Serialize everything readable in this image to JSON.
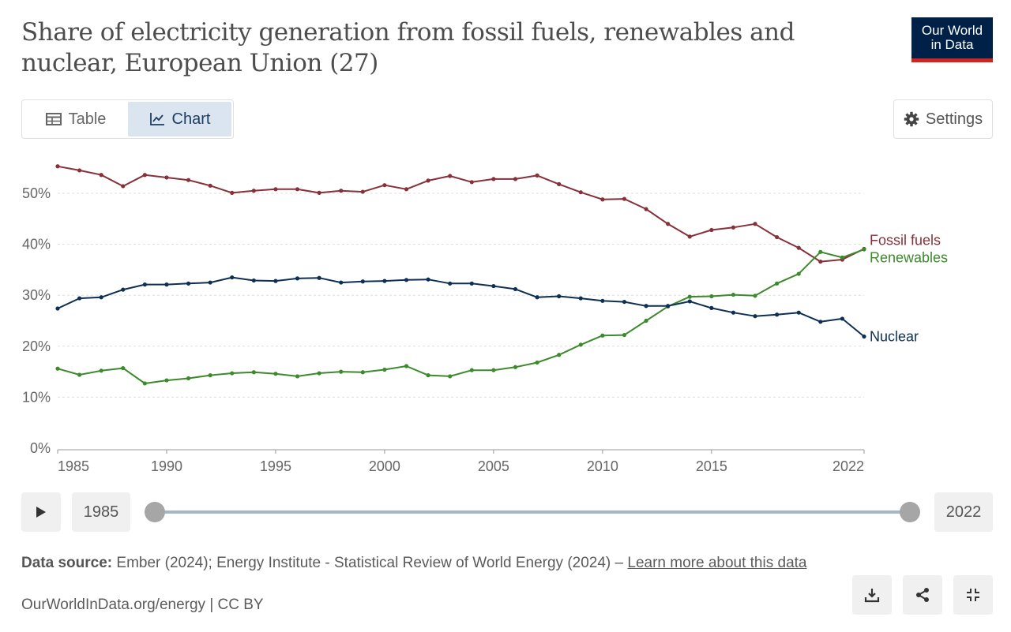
{
  "header": {
    "title": "Share of electricity generation from fossil fuels, renewables and nuclear, European Union (27)",
    "logo_line1": "Our World",
    "logo_line2": "in Data"
  },
  "tabs": [
    {
      "label": "Table",
      "icon": "table-icon",
      "active": false
    },
    {
      "label": "Chart",
      "icon": "line-chart-icon",
      "active": true
    }
  ],
  "settings_label": "Settings",
  "timeline": {
    "start_label": "1985",
    "end_label": "2022"
  },
  "footer": {
    "source_prefix": "Data source:",
    "source_text": "Ember (2024); Energy Institute - Statistical Review of World Energy (2024) –",
    "learn_more": "Learn more about this data",
    "credit": "OurWorldInData.org/energy | CC BY"
  },
  "colors": {
    "fossil": "#883039",
    "renewables": "#3c8a2b",
    "nuclear": "#0e2f54",
    "brand": "#002147",
    "accent": "#ce261e"
  },
  "chart_data": {
    "type": "line",
    "title": "Share of electricity generation from fossil fuels, renewables and nuclear, European Union (27)",
    "xlabel": "",
    "ylabel": "",
    "xlim": [
      1985,
      2022
    ],
    "ylim": [
      0,
      55
    ],
    "yticks": [
      0,
      10,
      20,
      30,
      40,
      50
    ],
    "ytick_labels": [
      "0%",
      "10%",
      "20%",
      "30%",
      "40%",
      "50%"
    ],
    "xticks": [
      1985,
      1990,
      1995,
      2000,
      2005,
      2010,
      2015,
      2022
    ],
    "xtick_labels": [
      "1985",
      "1990",
      "1995",
      "2000",
      "2005",
      "2010",
      "2015",
      "2022"
    ],
    "grid": "horizontal dashed",
    "legend": "inline at line ends (right)",
    "x": [
      1985,
      1986,
      1987,
      1988,
      1989,
      1990,
      1991,
      1992,
      1993,
      1994,
      1995,
      1996,
      1997,
      1998,
      1999,
      2000,
      2001,
      2002,
      2003,
      2004,
      2005,
      2006,
      2007,
      2008,
      2009,
      2010,
      2011,
      2012,
      2013,
      2014,
      2015,
      2016,
      2017,
      2018,
      2019,
      2020,
      2021,
      2022
    ],
    "series": [
      {
        "name": "Fossil fuels",
        "color": "#883039",
        "values": [
          55.3,
          54.5,
          53.6,
          51.4,
          53.6,
          53.1,
          52.6,
          51.5,
          50.1,
          50.5,
          50.8,
          50.8,
          50.1,
          50.5,
          50.3,
          51.6,
          50.8,
          52.5,
          53.4,
          52.2,
          52.8,
          52.8,
          53.5,
          51.8,
          50.2,
          48.8,
          48.9,
          46.9,
          44.0,
          41.5,
          42.8,
          43.3,
          44.0,
          41.4,
          39.3,
          36.6,
          37.0,
          39.1
        ]
      },
      {
        "name": "Renewables",
        "color": "#3c8a2b",
        "values": [
          15.6,
          14.4,
          15.2,
          15.7,
          12.7,
          13.3,
          13.7,
          14.3,
          14.7,
          14.9,
          14.6,
          14.1,
          14.7,
          15.0,
          14.9,
          15.4,
          16.1,
          14.3,
          14.1,
          15.3,
          15.3,
          15.9,
          16.8,
          18.3,
          20.3,
          22.1,
          22.2,
          25.0,
          27.8,
          29.7,
          29.8,
          30.1,
          29.9,
          32.3,
          34.2,
          38.5,
          37.4,
          39.0
        ]
      },
      {
        "name": "Nuclear",
        "color": "#0e2f54",
        "values": [
          27.4,
          29.4,
          29.6,
          31.1,
          32.1,
          32.1,
          32.3,
          32.5,
          33.5,
          32.9,
          32.8,
          33.3,
          33.4,
          32.5,
          32.7,
          32.8,
          33.0,
          33.1,
          32.3,
          32.3,
          31.8,
          31.2,
          29.6,
          29.8,
          29.4,
          28.9,
          28.7,
          27.9,
          27.9,
          28.8,
          27.5,
          26.6,
          25.9,
          26.2,
          26.6,
          24.8,
          25.4,
          21.9
        ]
      }
    ]
  }
}
